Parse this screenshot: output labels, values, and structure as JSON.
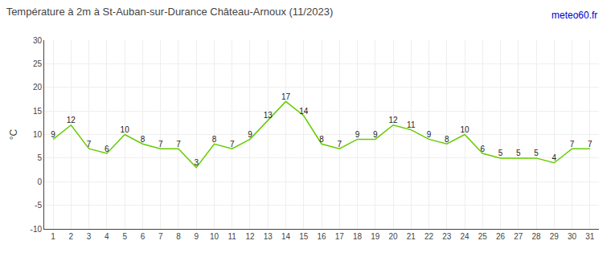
{
  "chart_data": {
    "type": "line",
    "title": "Température à 2m à St-Auban-sur-Durance Château-Arnoux (11/2023)",
    "y_label": "°C",
    "annotations": [
      {
        "text": "meteo60.fr",
        "color": "#0000cc"
      }
    ],
    "x": [
      1,
      2,
      3,
      4,
      5,
      6,
      7,
      8,
      9,
      10,
      11,
      12,
      13,
      14,
      15,
      16,
      17,
      18,
      19,
      20,
      21,
      22,
      23,
      24,
      25,
      26,
      27,
      28,
      29,
      30,
      31
    ],
    "values": [
      9,
      12,
      7,
      6,
      10,
      8,
      7,
      7,
      3,
      8,
      7,
      9,
      13,
      17,
      14,
      8,
      7,
      9,
      9,
      12,
      11,
      9,
      8,
      10,
      6,
      5,
      5,
      5,
      4,
      7,
      7
    ],
    "color": "#66cc00",
    "xlim": [
      0.5,
      31.5
    ],
    "xticks": [
      1,
      2,
      3,
      4,
      5,
      6,
      7,
      8,
      9,
      10,
      11,
      12,
      13,
      14,
      15,
      16,
      17,
      18,
      19,
      20,
      21,
      22,
      23,
      24,
      25,
      26,
      27,
      28,
      29,
      30,
      31
    ],
    "ylim": [
      -10,
      30
    ],
    "yticks": [
      -10,
      -5,
      0,
      5,
      10,
      15,
      20,
      25,
      30
    ],
    "grid": true,
    "data_labels": true
  }
}
